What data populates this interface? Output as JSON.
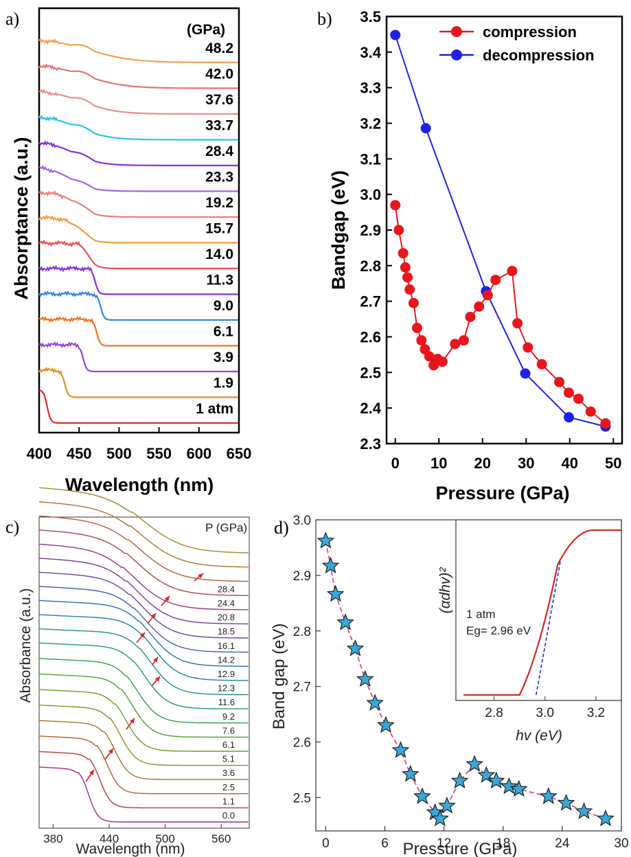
{
  "panels": {
    "a": "a)",
    "b": "b)",
    "c": "c)",
    "d": "d)"
  },
  "chart_data": [
    {
      "panel": "a",
      "type": "line",
      "xlabel": "Wavelength (nm)",
      "ylabel": "Absorptance (a.u.)",
      "xlim": [
        400,
        650
      ],
      "xticks": [
        400,
        450,
        500,
        550,
        600,
        650
      ],
      "unit_label": "(GPa)",
      "series": [
        {
          "name": "1 atm",
          "edge": 410,
          "color": "#e8242e"
        },
        {
          "name": "1.9",
          "edge": 432,
          "color": "#f08a1c"
        },
        {
          "name": "3.9",
          "edge": 455,
          "color": "#9b3fd8"
        },
        {
          "name": "6.1",
          "edge": 472,
          "color": "#f0721a"
        },
        {
          "name": "9.0",
          "edge": 477,
          "color": "#2f86e0"
        },
        {
          "name": "11.3",
          "edge": 470,
          "color": "#8a2be2"
        },
        {
          "name": "14.0",
          "edge": 460,
          "color": "#f04d55"
        },
        {
          "name": "15.7",
          "edge": 450,
          "color": "#f49a3a"
        },
        {
          "name": "19.2",
          "edge": 448,
          "color": "#ec7e80"
        },
        {
          "name": "23.3",
          "edge": 440,
          "color": "#a463e8"
        },
        {
          "name": "28.4",
          "edge": 445,
          "color": "#8a2be2"
        },
        {
          "name": "33.7",
          "edge": 450,
          "color": "#2bc3ee"
        },
        {
          "name": "37.6",
          "edge": 455,
          "color": "#ec8c8c"
        },
        {
          "name": "42.0",
          "edge": 460,
          "color": "#ec6e6e"
        },
        {
          "name": "48.2",
          "edge": 465,
          "color": "#f5a04e"
        }
      ]
    },
    {
      "panel": "b",
      "type": "line",
      "xlabel": "Pressure (GPa)",
      "ylabel": "Bandgap (eV)",
      "xlim": [
        -2,
        52
      ],
      "ylim": [
        2.3,
        3.5
      ],
      "xticks": [
        0,
        10,
        20,
        30,
        40,
        50
      ],
      "yticks": [
        2.3,
        2.4,
        2.5,
        2.6,
        2.7,
        2.8,
        2.9,
        3.0,
        3.1,
        3.2,
        3.3,
        3.4,
        3.5
      ],
      "legend": "top-right",
      "series": [
        {
          "name": "compression",
          "color": "#e8161b",
          "x": [
            0.0,
            0.8,
            1.8,
            2.3,
            2.8,
            3.3,
            4.2,
            5.0,
            6.0,
            6.8,
            7.8,
            8.8,
            9.7,
            10.8,
            13.7,
            15.7,
            17.2,
            19.2,
            21.2,
            23.0,
            26.8,
            28.0,
            30.4,
            33.6,
            37.6,
            39.8,
            42.0,
            44.8,
            48.2
          ],
          "y": [
            2.97,
            2.9,
            2.835,
            2.795,
            2.767,
            2.733,
            2.695,
            2.625,
            2.59,
            2.565,
            2.545,
            2.52,
            2.538,
            2.53,
            2.58,
            2.59,
            2.656,
            2.685,
            2.717,
            2.76,
            2.785,
            2.638,
            2.57,
            2.523,
            2.473,
            2.443,
            2.426,
            2.39,
            2.357
          ]
        },
        {
          "name": "decompression",
          "color": "#1f1fe8",
          "x": [
            0.0,
            7.0,
            20.8,
            29.8,
            39.8,
            48.2
          ],
          "y": [
            3.448,
            3.186,
            2.728,
            2.497,
            2.374,
            2.348
          ]
        }
      ]
    },
    {
      "panel": "c",
      "type": "line",
      "xlabel": "Wavelength (nm)",
      "ylabel": "Absorbance (a.u.)",
      "xlim": [
        365,
        590
      ],
      "xticks": [
        380,
        440,
        500,
        560
      ],
      "unit_label": "P (GPa)",
      "series": [
        {
          "name": "0.0",
          "edge": 418,
          "color": "#9b2a7a"
        },
        {
          "name": "1.1",
          "edge": 430,
          "color": "#b2383f"
        },
        {
          "name": "2.5",
          "edge": 438,
          "color": "#b55a2e"
        },
        {
          "name": "3.6",
          "edge": 446,
          "color": "#a0722a"
        },
        {
          "name": "5.1",
          "edge": 452,
          "color": "#8a8f1f"
        },
        {
          "name": "6.1",
          "edge": 458,
          "color": "#6e9c1e"
        },
        {
          "name": "7.6",
          "edge": 465,
          "color": "#4aa02c"
        },
        {
          "name": "9.2",
          "edge": 470,
          "color": "#2f9e4a"
        },
        {
          "name": "11.6",
          "edge": 478,
          "color": "#21996a"
        },
        {
          "name": "12.3",
          "edge": 484,
          "color": "#1c8f86"
        },
        {
          "name": "12.9",
          "edge": 487,
          "color": "#1f7ea3"
        },
        {
          "name": "14.2",
          "edge": 484,
          "color": "#2d6aaf"
        },
        {
          "name": "16.1",
          "edge": 478,
          "color": "#4657a8"
        },
        {
          "name": "18.5",
          "edge": 474,
          "color": "#6246a0"
        },
        {
          "name": "20.8",
          "edge": 470,
          "color": "#7a3a94"
        },
        {
          "name": "24.4",
          "edge": 466,
          "color": "#93357c"
        },
        {
          "name": "28.4",
          "edge": 470,
          "color": "#a84253"
        },
        {
          "name": "",
          "edge": 472,
          "color": "#b25a38"
        },
        {
          "name": "",
          "edge": 474,
          "color": "#a8742c"
        },
        {
          "name": "",
          "edge": 476,
          "color": "#9a8a22"
        }
      ]
    },
    {
      "panel": "d",
      "type": "scatter",
      "xlabel": "Pressure (GPa)",
      "ylabel": "Band gap (eV)",
      "xlim": [
        -1,
        30
      ],
      "ylim": [
        2.44,
        3.0
      ],
      "xticks": [
        0,
        6,
        12,
        18,
        24,
        30
      ],
      "yticks": [
        2.5,
        2.6,
        2.7,
        2.8,
        2.9,
        3.0
      ],
      "series": [
        {
          "name": "",
          "marker": "star",
          "color": "#3ba6d8",
          "line_color": "#e0467c",
          "x": [
            0.0,
            0.5,
            1.0,
            2.0,
            3.0,
            4.0,
            5.0,
            6.1,
            7.6,
            8.6,
            9.8,
            11.1,
            11.6,
            12.3,
            13.6,
            15.1,
            16.3,
            17.3,
            18.6,
            19.6,
            22.6,
            24.4,
            26.2,
            28.4
          ],
          "y": [
            2.962,
            2.917,
            2.866,
            2.815,
            2.768,
            2.713,
            2.67,
            2.63,
            2.585,
            2.542,
            2.502,
            2.473,
            2.462,
            2.485,
            2.53,
            2.56,
            2.54,
            2.53,
            2.52,
            2.515,
            2.502,
            2.49,
            2.475,
            2.462
          ]
        }
      ],
      "inset": {
        "xlabel": "hv (eV)",
        "ylabel": "(αdhv)²",
        "xlim": [
          2.65,
          3.3
        ],
        "xticks": [
          2.8,
          3.0,
          3.2
        ],
        "annotation_line1": "1 atm",
        "annotation_line2": "Eg= 2.96 eV",
        "curve_color": "#d32727",
        "fit_color": "#1a2bd0"
      }
    }
  ]
}
